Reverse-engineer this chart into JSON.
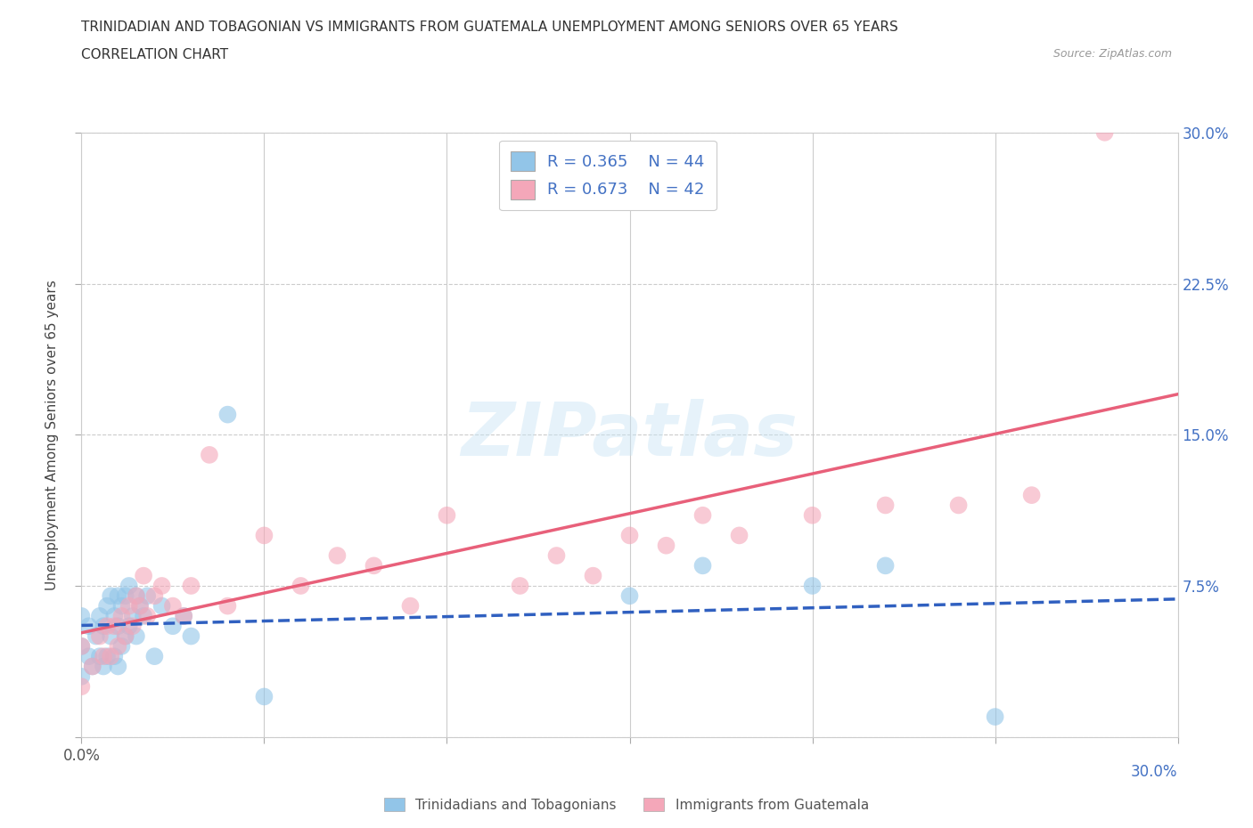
{
  "title_line1": "TRINIDADIAN AND TOBAGONIAN VS IMMIGRANTS FROM GUATEMALA UNEMPLOYMENT AMONG SENIORS OVER 65 YEARS",
  "title_line2": "CORRELATION CHART",
  "source_text": "Source: ZipAtlas.com",
  "ylabel": "Unemployment Among Seniors over 65 years",
  "xlim": [
    0,
    0.3
  ],
  "ylim": [
    0,
    0.3
  ],
  "xticks": [
    0.0,
    0.05,
    0.1,
    0.15,
    0.2,
    0.25,
    0.3
  ],
  "yticks": [
    0.0,
    0.075,
    0.15,
    0.225,
    0.3
  ],
  "watermark": "ZIPatlas",
  "blue_color": "#92C5E8",
  "pink_color": "#F4A7B9",
  "blue_line_color": "#3060C0",
  "pink_line_color": "#E8607A",
  "legend_R1": "R = 0.365",
  "legend_N1": "N = 44",
  "legend_R2": "R = 0.673",
  "legend_N2": "N = 42",
  "blue_scatter_x": [
    0.0,
    0.0,
    0.0,
    0.002,
    0.002,
    0.003,
    0.004,
    0.005,
    0.005,
    0.006,
    0.006,
    0.007,
    0.007,
    0.008,
    0.008,
    0.009,
    0.009,
    0.01,
    0.01,
    0.01,
    0.011,
    0.011,
    0.012,
    0.012,
    0.013,
    0.013,
    0.014,
    0.015,
    0.015,
    0.016,
    0.017,
    0.018,
    0.02,
    0.022,
    0.025,
    0.028,
    0.03,
    0.04,
    0.05,
    0.15,
    0.17,
    0.2,
    0.22,
    0.25
  ],
  "blue_scatter_y": [
    0.03,
    0.045,
    0.06,
    0.04,
    0.055,
    0.035,
    0.05,
    0.04,
    0.06,
    0.035,
    0.055,
    0.04,
    0.065,
    0.05,
    0.07,
    0.04,
    0.06,
    0.035,
    0.055,
    0.07,
    0.045,
    0.065,
    0.05,
    0.07,
    0.055,
    0.075,
    0.06,
    0.05,
    0.07,
    0.065,
    0.06,
    0.07,
    0.04,
    0.065,
    0.055,
    0.06,
    0.05,
    0.16,
    0.02,
    0.07,
    0.085,
    0.075,
    0.085,
    0.01
  ],
  "pink_scatter_x": [
    0.0,
    0.0,
    0.003,
    0.005,
    0.006,
    0.007,
    0.008,
    0.009,
    0.01,
    0.011,
    0.012,
    0.013,
    0.014,
    0.015,
    0.016,
    0.017,
    0.018,
    0.02,
    0.022,
    0.025,
    0.028,
    0.03,
    0.035,
    0.04,
    0.05,
    0.06,
    0.07,
    0.08,
    0.09,
    0.1,
    0.12,
    0.13,
    0.14,
    0.15,
    0.16,
    0.17,
    0.18,
    0.2,
    0.22,
    0.24,
    0.26,
    0.28
  ],
  "pink_scatter_y": [
    0.025,
    0.045,
    0.035,
    0.05,
    0.04,
    0.055,
    0.04,
    0.055,
    0.045,
    0.06,
    0.05,
    0.065,
    0.055,
    0.07,
    0.065,
    0.08,
    0.06,
    0.07,
    0.075,
    0.065,
    0.06,
    0.075,
    0.14,
    0.065,
    0.1,
    0.075,
    0.09,
    0.085,
    0.065,
    0.11,
    0.075,
    0.09,
    0.08,
    0.1,
    0.095,
    0.11,
    0.1,
    0.11,
    0.115,
    0.115,
    0.12,
    0.3
  ],
  "grid_color": "#CCCCCC",
  "bg_color": "#FFFFFF"
}
